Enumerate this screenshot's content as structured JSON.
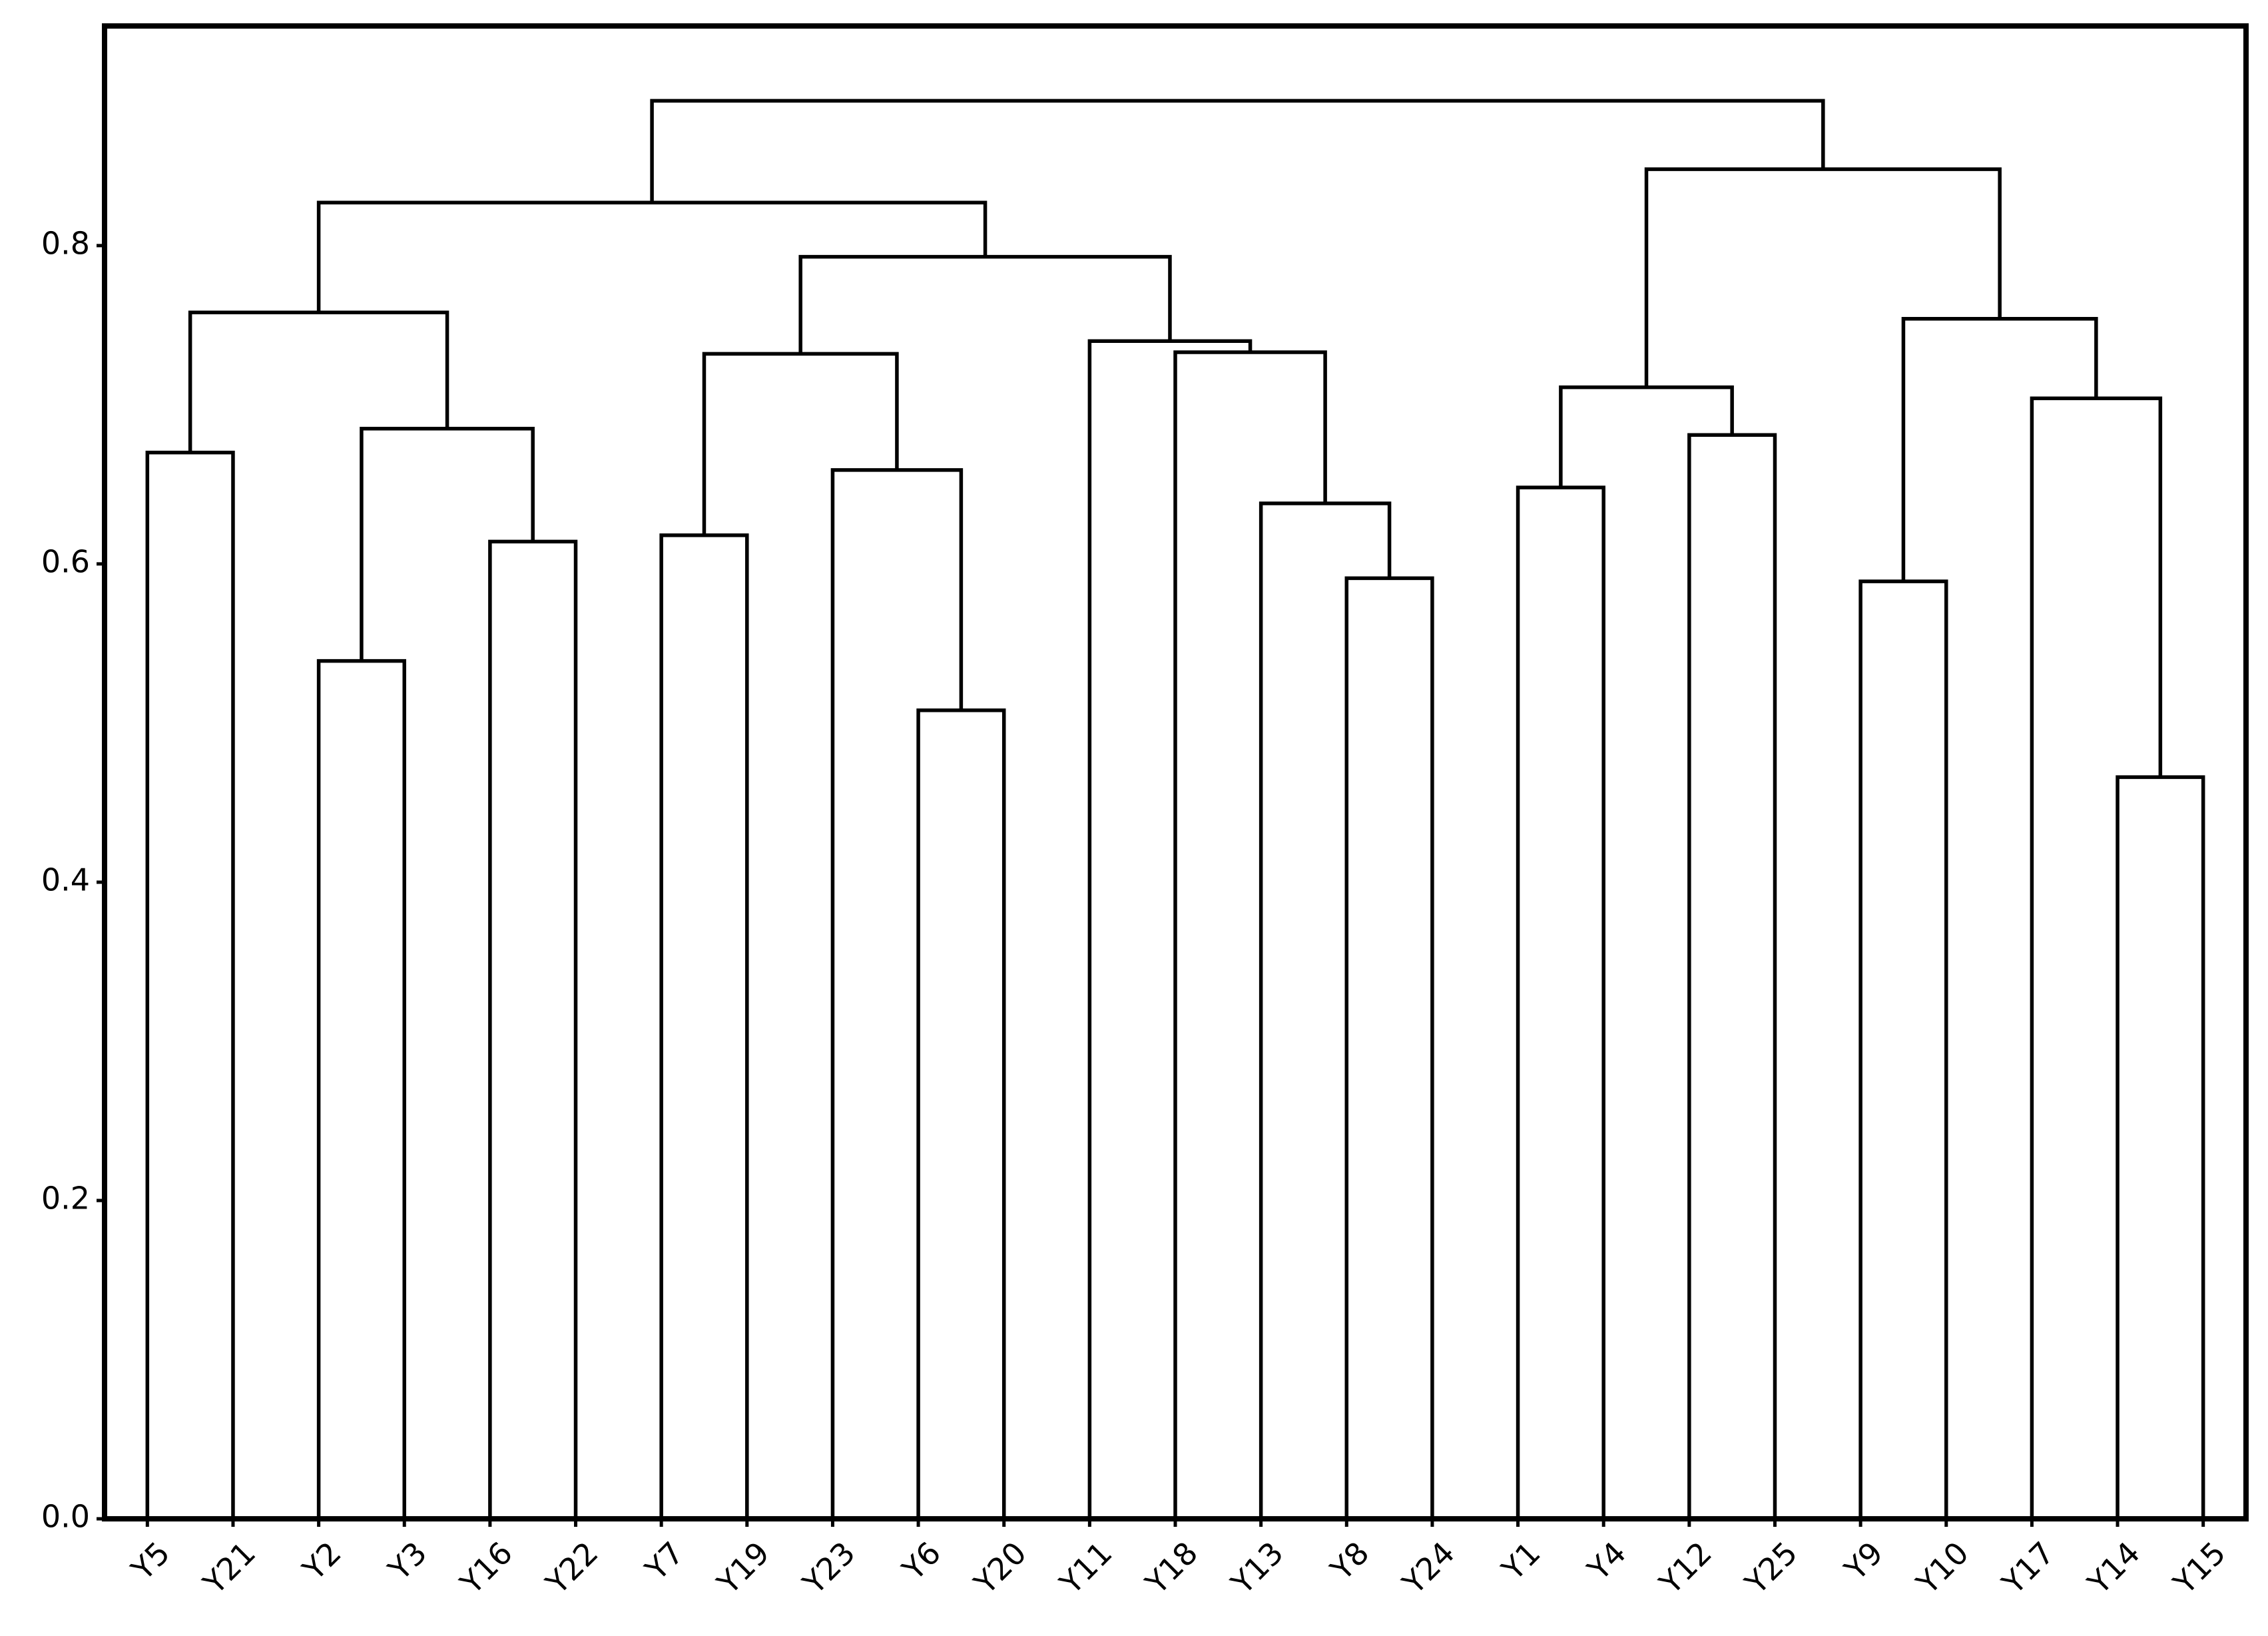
{
  "chart_data": {
    "type": "dendrogram",
    "color": "#000000",
    "ylim": [
      0,
      0.938
    ],
    "yticks": [
      {
        "value": 0,
        "label": "0.0"
      },
      0.2,
      0.4,
      0.6,
      0.8
    ],
    "tree": {
      "height": 0.891,
      "children": [
        {
          "height": 0.827,
          "children": [
            {
              "height": 0.758,
              "children": [
                {
                  "height": 0.67,
                  "children": [
                    {
                      "label": "Y5"
                    },
                    {
                      "label": "Y21"
                    }
                  ]
                },
                {
                  "height": 0.685,
                  "children": [
                    {
                      "height": 0.539,
                      "children": [
                        {
                          "label": "Y2"
                        },
                        {
                          "label": "Y3"
                        }
                      ]
                    },
                    {
                      "height": 0.614,
                      "children": [
                        {
                          "label": "Y16"
                        },
                        {
                          "label": "Y22"
                        }
                      ]
                    }
                  ]
                }
              ]
            },
            {
              "height": 0.793,
              "children": [
                {
                  "height": 0.732,
                  "children": [
                    {
                      "height": 0.618,
                      "children": [
                        {
                          "label": "Y7"
                        },
                        {
                          "label": "Y19"
                        }
                      ]
                    },
                    {
                      "height": 0.659,
                      "children": [
                        {
                          "label": "Y23"
                        },
                        {
                          "height": 0.508,
                          "children": [
                            {
                              "label": "Y6"
                            },
                            {
                              "label": "Y20"
                            }
                          ]
                        }
                      ]
                    }
                  ]
                },
                {
                  "height": 0.74,
                  "children": [
                    {
                      "label": "Y11"
                    },
                    {
                      "height": 0.733,
                      "children": [
                        {
                          "label": "Y18"
                        },
                        {
                          "height": 0.638,
                          "children": [
                            {
                              "label": "Y13"
                            },
                            {
                              "height": 0.591,
                              "children": [
                                {
                                  "label": "Y8"
                                },
                                {
                                  "label": "Y24"
                                }
                              ]
                            }
                          ]
                        }
                      ]
                    }
                  ]
                }
              ]
            }
          ]
        },
        {
          "height": 0.848,
          "children": [
            {
              "height": 0.711,
              "children": [
                {
                  "height": 0.648,
                  "children": [
                    {
                      "label": "Y1"
                    },
                    {
                      "label": "Y4"
                    }
                  ]
                },
                {
                  "height": 0.681,
                  "children": [
                    {
                      "label": "Y12"
                    },
                    {
                      "label": "Y25"
                    }
                  ]
                }
              ]
            },
            {
              "height": 0.754,
              "children": [
                {
                  "height": 0.589,
                  "children": [
                    {
                      "label": "Y9"
                    },
                    {
                      "label": "Y10"
                    }
                  ]
                },
                {
                  "height": 0.704,
                  "children": [
                    {
                      "label": "Y17"
                    },
                    {
                      "height": 0.466,
                      "children": [
                        {
                          "label": "Y14"
                        },
                        {
                          "label": "Y15"
                        }
                      ]
                    }
                  ]
                }
              ]
            }
          ]
        }
      ]
    }
  }
}
